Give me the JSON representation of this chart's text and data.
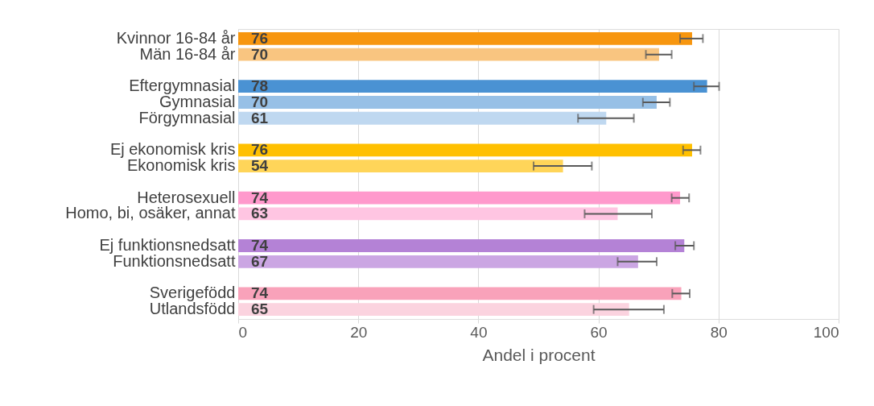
{
  "chart_data": {
    "type": "bar",
    "orientation": "horizontal",
    "xlabel": "Andel i procent",
    "categories": [
      "Kvinnor 16-84 år",
      "Män 16-84 år",
      null,
      "Eftergymnasial",
      "Gymnasial",
      "Förgymnasial",
      null,
      "Ej ekonomisk kris",
      "Ekonomisk kris",
      null,
      "Heterosexuell",
      "Homo, bi, osäker, annat",
      null,
      "Ej funktionsnedsatt",
      "Funktionsnedsatt",
      null,
      "Sverigefödd",
      "Utlandsfödd"
    ],
    "values": [
      75.6,
      70.1,
      null,
      78.1,
      69.7,
      61.3,
      null,
      75.6,
      54.1,
      null,
      73.6,
      63.2,
      null,
      74.3,
      66.6,
      null,
      73.8,
      65.1
    ],
    "colors": [
      "#f7960f",
      "#f9c580",
      null,
      "#4a92d3",
      "#97c0e6",
      "#bfd8f0",
      null,
      "#ffc000",
      "#ffd559",
      null,
      "#ff99cc",
      "#ffc5e2",
      null,
      "#b482d6",
      "#cba6e3",
      null,
      "#f9a2ba",
      "#fbd3df"
    ],
    "errors": [
      [
        73.6,
        77.4
      ],
      [
        67.9,
        72.2
      ],
      null,
      [
        75.9,
        80.1
      ],
      [
        67.4,
        71.9
      ],
      [
        56.6,
        65.9
      ],
      null,
      [
        74.1,
        77.0
      ],
      [
        49.2,
        58.9
      ],
      null,
      [
        72.2,
        75.1
      ],
      [
        57.7,
        68.9
      ],
      null,
      [
        72.8,
        75.9
      ],
      [
        63.2,
        69.7
      ],
      null,
      [
        72.3,
        75.2
      ],
      [
        59.2,
        70.9
      ]
    ],
    "value_labels": [
      "76",
      "70",
      null,
      "78",
      "70",
      "61",
      null,
      "76",
      "54",
      null,
      "74",
      "63",
      null,
      "74",
      "67",
      null,
      "74",
      "65"
    ],
    "xlim": [
      0,
      100
    ],
    "xticks": [
      0,
      20,
      40,
      60,
      80,
      100
    ],
    "grid": "x"
  }
}
